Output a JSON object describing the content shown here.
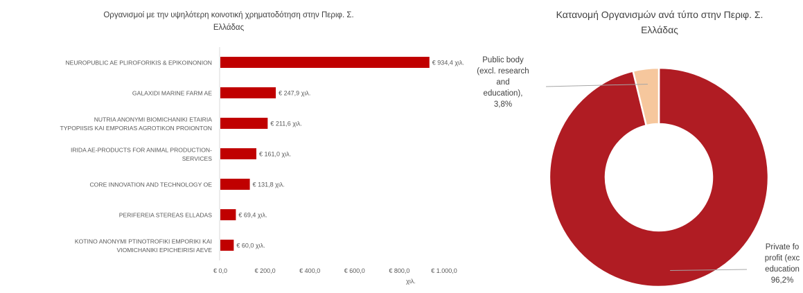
{
  "chart_data": [
    {
      "type": "bar",
      "orientation": "horizontal",
      "title": "Οργανισμοί με την υψηλότερη κοινοτική χρηματοδότηση στην Περιφ. Σ. Ελλάδας",
      "title_lines": [
        "Οργανισμοί με την υψηλότερη κοινοτική χρηματοδότηση στην Περιφ. Σ.",
        "Ελλάδας"
      ],
      "categories": [
        "NEUROPUBLIC AE PLIROFORIKIS & EPIKOINONION",
        "GALAXIDI MARINE FARM AE",
        "NUTRIA ANONYMI BIOMICHANIKI ETAIRIA TYPOPIISIS KAI EMPORIAS AGROTIKON PROIONTON",
        "IRIDA AE-PRODUCTS FOR ANIMAL PRODUCTION-SERVICES",
        "CORE INNOVATION AND TECHNOLOGY OE",
        "PERIFEREIA STEREAS ELLADAS",
        "KOTINO ANONYMI PTINOTROFIKI EMPORIKI KAI VIOMICHANIKI EPICHEIRISI AEVE"
      ],
      "category_lines": [
        [
          "NEUROPUBLIC AE PLIROFORIKIS & EPIKOINONION"
        ],
        [
          "GALAXIDI MARINE FARM AE"
        ],
        [
          "NUTRIA ANONYMI BIOMICHANIKI ETAIRIA",
          "TYPOPIISIS KAI EMPORIAS AGROTIKON PROIONTON"
        ],
        [
          "IRIDA AE-PRODUCTS FOR ANIMAL PRODUCTION-",
          "SERVICES"
        ],
        [
          "CORE INNOVATION AND TECHNOLOGY OE"
        ],
        [
          "PERIFEREIA STEREAS ELLADAS"
        ],
        [
          "KOTINO ANONYMI PTINOTROFIKI EMPORIKI KAI",
          "VIOMICHANIKI EPICHEIRISI AEVE"
        ]
      ],
      "values": [
        934.4,
        247.9,
        211.6,
        161.0,
        131.8,
        69.4,
        60.0
      ],
      "data_labels": [
        "€ 934,4 χιλ.",
        "€ 247,9 χιλ.",
        "€ 211,6 χιλ.",
        "€ 161,0 χιλ.",
        "€ 131,8 χιλ.",
        "€ 69,4 χιλ.",
        "€ 60,0 χιλ."
      ],
      "xlim": [
        0,
        1000
      ],
      "ticks": [
        0,
        200,
        400,
        600,
        800,
        1000
      ],
      "tick_labels": [
        "€ 0,0",
        "€ 200,0",
        "€ 400,0",
        "€ 600,0",
        "€ 800,0",
        "€ 1.000,0"
      ],
      "tick_unit_label": "χιλ.",
      "bar_color": "#c00000",
      "grid": false
    },
    {
      "type": "pie",
      "variant": "donut",
      "title": "Κατανομή Οργανισμών ανά τύπο στην Περιφ. Σ. Ελλάδας",
      "title_lines": [
        "Κατανομή Οργανισμών ανά τύπο στην Περιφ. Σ.",
        "Ελλάδας"
      ],
      "slices": [
        {
          "label": "Private for profit (excl. education)",
          "value": 96.2,
          "label_lines": [
            "Private fo",
            "profit (exc",
            "education",
            "96,2%"
          ],
          "color": "#b01c23"
        },
        {
          "label": "Public body (excl. research and education)",
          "value": 3.8,
          "label_lines": [
            "Public body",
            "(excl. research",
            "and",
            "education),",
            "3,8%"
          ],
          "color": "#f6c79d"
        }
      ]
    }
  ]
}
